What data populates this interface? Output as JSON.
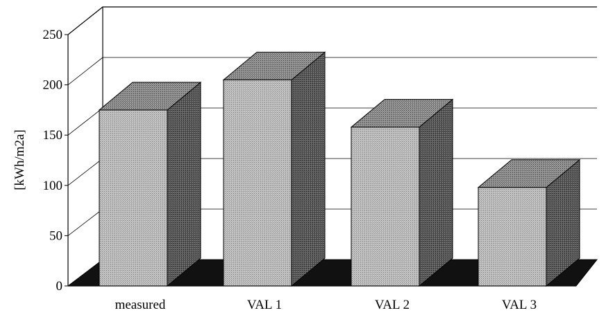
{
  "chart_data": {
    "type": "bar",
    "style": "3d-column",
    "categories": [
      "measured",
      "VAL1",
      "VAL2",
      "VAL3"
    ],
    "category_labels": [
      "measured",
      "VAL 1",
      "VAL 2",
      "VAL 3"
    ],
    "values": [
      175,
      205,
      158,
      98
    ],
    "ylabel": "[kWh/m2a]",
    "xlabel": "",
    "ylim": [
      0,
      250
    ],
    "yticks": [
      0,
      50,
      100,
      150,
      200,
      250
    ],
    "grid": true,
    "legend": "none",
    "colors": {
      "bar_front": "#b8b8b8",
      "bar_top": "#8a8a8a",
      "bar_side": "#4a4a4a",
      "floor": "#111111",
      "grid": "#000000"
    }
  }
}
